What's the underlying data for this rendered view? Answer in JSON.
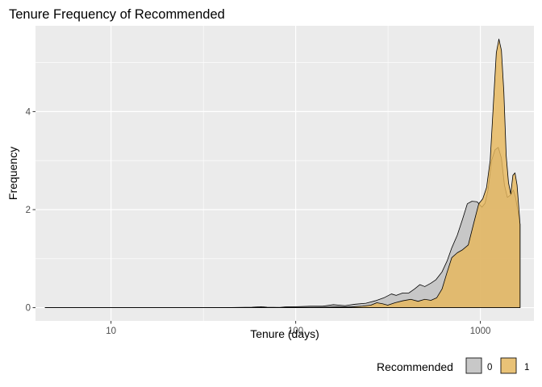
{
  "chart_data": {
    "type": "area",
    "title": "Tenure Frequency of Recommended",
    "xlabel": "Tenure (days)",
    "ylabel": "Frequency",
    "x_scale": "log10",
    "xlim": [
      3.9,
      1950
    ],
    "ylim": [
      -0.27,
      5.75
    ],
    "x_ticks": [
      10,
      100,
      1000
    ],
    "x_tick_labels": [
      "10",
      "100",
      "1000"
    ],
    "y_ticks": [
      0,
      2,
      4
    ],
    "y_tick_labels": [
      "0",
      "2",
      "4"
    ],
    "grid": true,
    "legend": {
      "title": "Recommended",
      "position": "bottom-right",
      "entries": [
        "0",
        "1"
      ]
    },
    "series": [
      {
        "name": "0",
        "color": "#bebebe",
        "points": [
          [
            4.4,
            0
          ],
          [
            20,
            0
          ],
          [
            45,
            0.003
          ],
          [
            58,
            0.01
          ],
          [
            65,
            0.02
          ],
          [
            70,
            0.01
          ],
          [
            82,
            0.005
          ],
          [
            90,
            0.02
          ],
          [
            100,
            0.02
          ],
          [
            120,
            0.03
          ],
          [
            140,
            0.03
          ],
          [
            160,
            0.06
          ],
          [
            185,
            0.04
          ],
          [
            210,
            0.07
          ],
          [
            240,
            0.09
          ],
          [
            270,
            0.14
          ],
          [
            300,
            0.2
          ],
          [
            330,
            0.28
          ],
          [
            350,
            0.25
          ],
          [
            380,
            0.3
          ],
          [
            410,
            0.3
          ],
          [
            440,
            0.38
          ],
          [
            470,
            0.47
          ],
          [
            500,
            0.43
          ],
          [
            540,
            0.5
          ],
          [
            575,
            0.57
          ],
          [
            620,
            0.73
          ],
          [
            660,
            0.95
          ],
          [
            700,
            1.22
          ],
          [
            750,
            1.48
          ],
          [
            800,
            1.8
          ],
          [
            850,
            2.12
          ],
          [
            900,
            2.17
          ],
          [
            960,
            2.16
          ],
          [
            1020,
            2.05
          ],
          [
            1060,
            2.13
          ],
          [
            1100,
            2.4
          ],
          [
            1150,
            3.0
          ],
          [
            1200,
            3.22
          ],
          [
            1250,
            3.27
          ],
          [
            1300,
            3.05
          ],
          [
            1350,
            2.5
          ],
          [
            1400,
            2.25
          ],
          [
            1460,
            2.3
          ],
          [
            1510,
            2.4
          ],
          [
            1550,
            2.25
          ],
          [
            1600,
            1.95
          ],
          [
            1640,
            1.7
          ]
        ]
      },
      {
        "name": "1",
        "color": "#e7b75c",
        "points": [
          [
            4.4,
            0
          ],
          [
            60,
            0
          ],
          [
            100,
            0.005
          ],
          [
            140,
            0.01
          ],
          [
            170,
            0.015
          ],
          [
            200,
            0.015
          ],
          [
            230,
            0.03
          ],
          [
            255,
            0.05
          ],
          [
            275,
            0.1
          ],
          [
            295,
            0.08
          ],
          [
            315,
            0.05
          ],
          [
            345,
            0.1
          ],
          [
            380,
            0.14
          ],
          [
            420,
            0.17
          ],
          [
            460,
            0.13
          ],
          [
            500,
            0.17
          ],
          [
            540,
            0.15
          ],
          [
            580,
            0.2
          ],
          [
            620,
            0.38
          ],
          [
            660,
            0.72
          ],
          [
            700,
            1.02
          ],
          [
            750,
            1.12
          ],
          [
            800,
            1.18
          ],
          [
            860,
            1.28
          ],
          [
            920,
            1.72
          ],
          [
            980,
            2.12
          ],
          [
            1030,
            2.22
          ],
          [
            1080,
            2.45
          ],
          [
            1130,
            3.0
          ],
          [
            1180,
            4.25
          ],
          [
            1220,
            5.2
          ],
          [
            1260,
            5.48
          ],
          [
            1300,
            5.25
          ],
          [
            1340,
            4.4
          ],
          [
            1380,
            3.1
          ],
          [
            1420,
            2.55
          ],
          [
            1460,
            2.32
          ],
          [
            1500,
            2.7
          ],
          [
            1540,
            2.75
          ],
          [
            1580,
            2.5
          ],
          [
            1610,
            2.1
          ],
          [
            1640,
            1.7
          ]
        ]
      }
    ]
  }
}
